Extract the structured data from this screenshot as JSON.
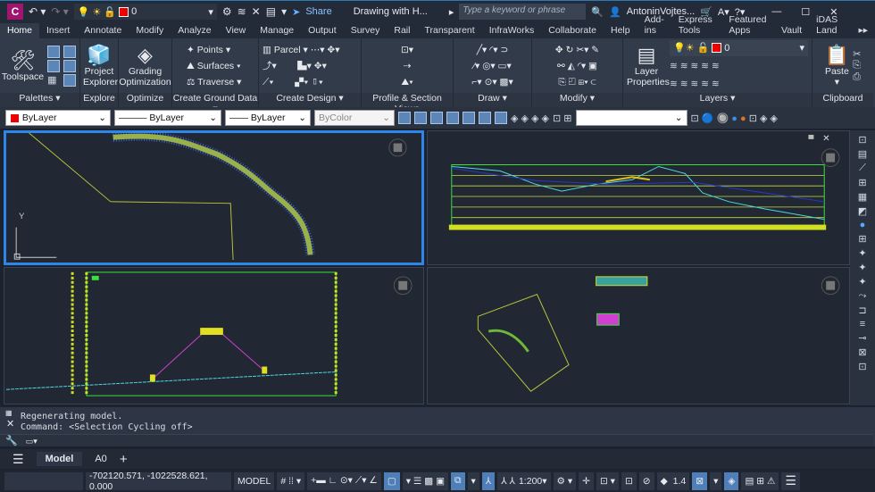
{
  "title_bar": {
    "app_letter": "C",
    "layer_value": "0",
    "share_label": "Share",
    "document_title": "Drawing with H...",
    "search_placeholder": "Type a keyword or phrase",
    "user_name": "AntoninVojtes..."
  },
  "ribbon_tabs": [
    "Home",
    "Insert",
    "Annotate",
    "Modify",
    "Analyze",
    "View",
    "Manage",
    "Output",
    "Survey",
    "Rail",
    "Transparent",
    "InfraWorks",
    "Collaborate",
    "Help",
    "Add-ins",
    "Express Tools",
    "Featured Apps",
    "Vault",
    "iDAS Land"
  ],
  "active_tab": "Home",
  "panels": {
    "palettes": {
      "title": "Palettes",
      "toolspace": "Toolspace"
    },
    "explore": {
      "title": "Explore",
      "button": "Project Explorer"
    },
    "optimize": {
      "title": "Optimize",
      "button": "Grading Optimization"
    },
    "ground": {
      "title": "Create Ground Data",
      "items": [
        "Points",
        "Surfaces",
        "Traverse"
      ]
    },
    "design": {
      "title": "Create Design",
      "parcel": "Parcel"
    },
    "profile": {
      "title": "Profile & Section Views"
    },
    "draw": {
      "title": "Draw"
    },
    "modify": {
      "title": "Modify"
    },
    "layers": {
      "title": "Layers",
      "button": "Layer Properties",
      "layer_value": "0"
    },
    "clipboard": {
      "title": "Clipboard",
      "paste": "Paste"
    }
  },
  "properties": {
    "color": "ByLayer",
    "linetype": "ByLayer",
    "lineweight": "ByLayer",
    "plotstyle": "ByColor",
    "accent_color": "#ff0000"
  },
  "viewports": {
    "ucs_y": "Y"
  },
  "command": {
    "lines": [
      "Regenerating model.",
      "Command:  <Selection Cycling off>"
    ]
  },
  "layout_tabs": [
    "Model",
    "A0"
  ],
  "status": {
    "coordinates": "-702120.571, -1022528.621, 0.000",
    "space": "MODEL",
    "scale": "1:200",
    "lineweight_value": "1.4"
  }
}
